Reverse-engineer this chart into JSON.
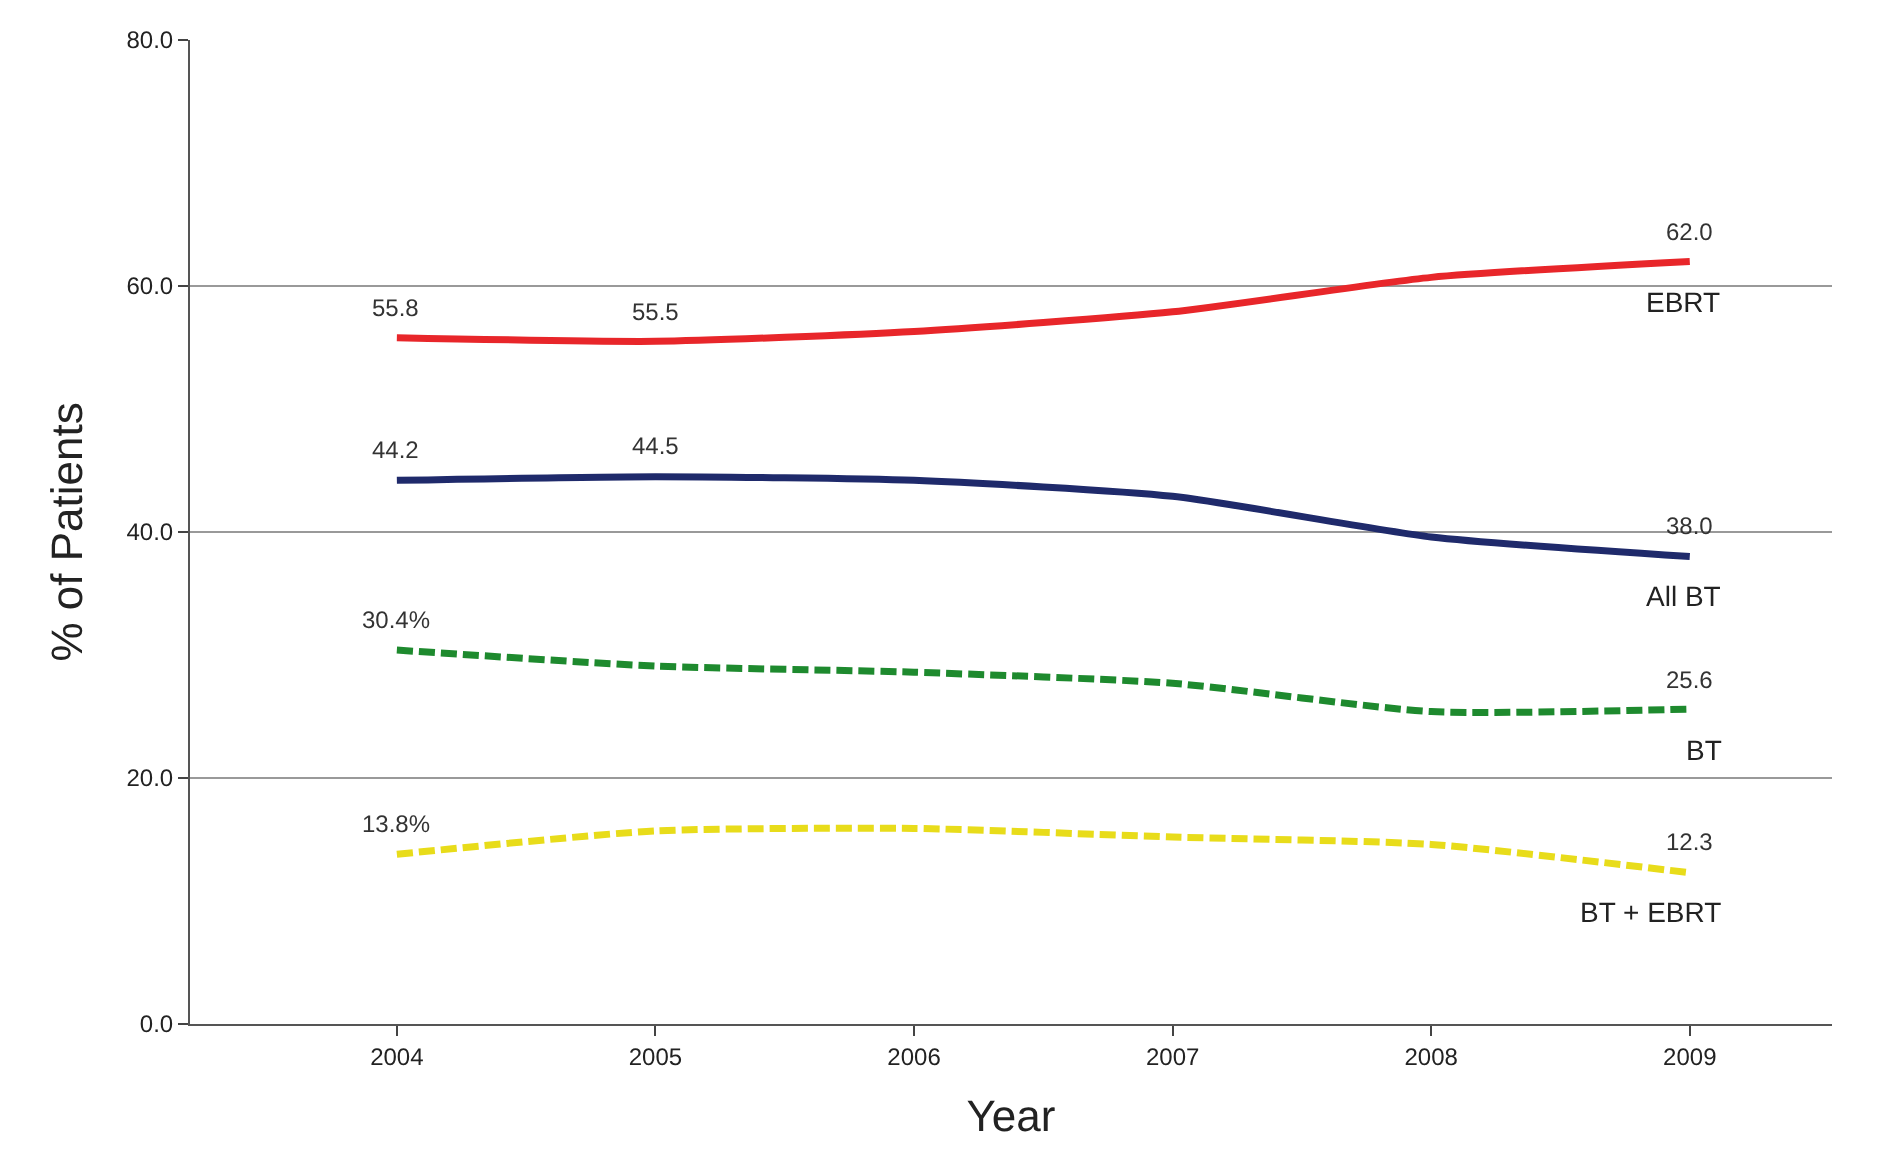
{
  "chart_data": {
    "type": "line",
    "xlabel": "Year",
    "ylabel": "% of Patients",
    "categories": [
      "2004",
      "2005",
      "2006",
      "2007",
      "2008",
      "2009"
    ],
    "series": [
      {
        "name": "EBRT",
        "color": "#e8262a",
        "line_style": "solid",
        "values": [
          55.8,
          55.5,
          56.3,
          57.9,
          60.7,
          62.0
        ],
        "value_labels": [
          "55.8",
          "55.5",
          null,
          null,
          null,
          "62.0"
        ]
      },
      {
        "name": "All BT",
        "color": "#1f2a6b",
        "line_style": "solid",
        "values": [
          44.2,
          44.5,
          44.2,
          42.9,
          39.6,
          38.0
        ],
        "value_labels": [
          "44.2",
          "44.5",
          null,
          null,
          null,
          "38.0"
        ]
      },
      {
        "name": "BT",
        "color": "#1e8a2e",
        "line_style": "dashed",
        "values": [
          30.4,
          29.1,
          28.6,
          27.7,
          25.4,
          25.6
        ],
        "value_labels": [
          "30.4%",
          null,
          null,
          null,
          null,
          "25.6"
        ]
      },
      {
        "name": "BT + EBRT",
        "color": "#e8dc1a",
        "line_style": "dashed",
        "values": [
          13.8,
          15.7,
          15.9,
          15.2,
          14.6,
          12.3
        ],
        "value_labels": [
          "13.8%",
          null,
          null,
          null,
          null,
          "12.3"
        ]
      }
    ],
    "ylim": [
      0,
      80
    ],
    "yticks": [
      {
        "value": 0,
        "label": "0.0"
      },
      {
        "value": 20,
        "label": "20.0"
      },
      {
        "value": 40,
        "label": "40.0"
      },
      {
        "value": 60,
        "label": "60.0"
      },
      {
        "value": 80,
        "label": "80.0"
      }
    ],
    "grid": "y",
    "legend": false,
    "marker": "none"
  }
}
